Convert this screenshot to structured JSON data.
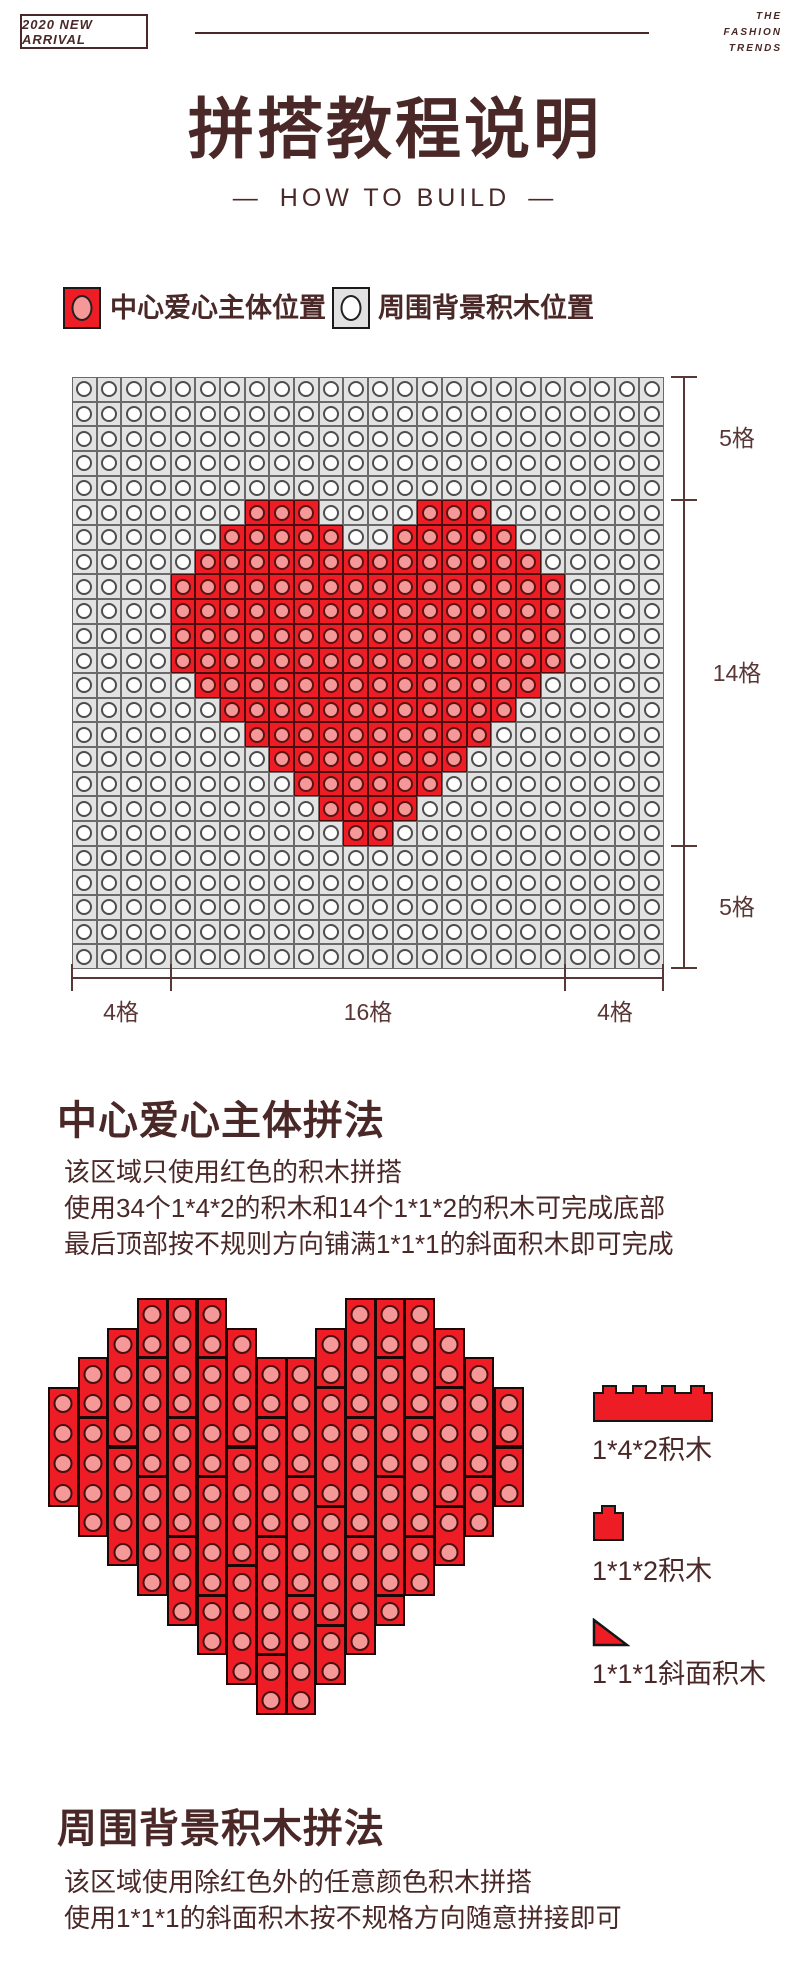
{
  "header": {
    "badge": "2020 NEW ARRIVAL",
    "brand": [
      "THE",
      "FASHION",
      "TRENDS"
    ],
    "title": "拼搭教程说明",
    "dash": "—",
    "subtitle": "HOW TO BUILD"
  },
  "legend": {
    "items": [
      {
        "label": "中心爱心主体位置",
        "swatch": "red"
      },
      {
        "label": "周围背景积木位置",
        "swatch": "gray"
      }
    ]
  },
  "colors": {
    "red": "#ee1c25",
    "pink": "#f49898",
    "gray_block": "#e2e2e2",
    "maroon_text": "#4a2828",
    "dimension_line": "#5a3737"
  },
  "grid": {
    "cols": 24,
    "rows": 24,
    "heart_rows": [
      [],
      [],
      [],
      [],
      [],
      [
        [
          8,
          10
        ],
        [
          15,
          17
        ]
      ],
      [
        [
          7,
          11
        ],
        [
          14,
          18
        ]
      ],
      [
        [
          6,
          19
        ]
      ],
      [
        [
          5,
          20
        ]
      ],
      [
        [
          5,
          20
        ]
      ],
      [
        [
          5,
          20
        ]
      ],
      [
        [
          5,
          20
        ]
      ],
      [
        [
          6,
          19
        ]
      ],
      [
        [
          7,
          18
        ]
      ],
      [
        [
          8,
          17
        ]
      ],
      [
        [
          9,
          16
        ]
      ],
      [
        [
          10,
          15
        ]
      ],
      [
        [
          11,
          14
        ]
      ],
      [
        [
          12,
          13
        ]
      ],
      [],
      [],
      [],
      [],
      []
    ]
  },
  "dimensions": {
    "right": [
      "5格",
      "14格",
      "5格"
    ],
    "bottom": [
      "4格",
      "16格",
      "4格"
    ]
  },
  "section1": {
    "heading": "中心爱心主体拼法",
    "lines": [
      "该区域只使用红色的积木拼搭",
      "使用34个1*4*2的积木和14个1*1*2的积木可完成底部",
      "最后顶部按不规则方向铺满1*1*1的斜面积木即可完成"
    ]
  },
  "bricks": [
    {
      "label": "1*4*2积木",
      "type": "brick-1x4x2"
    },
    {
      "label": "1*1*2积木",
      "type": "brick-1x1x2"
    },
    {
      "label": "1*1*1斜面积木",
      "type": "slope-1x1x1"
    }
  ],
  "section2": {
    "heading": "周围背景积木拼法",
    "lines": [
      "该区域使用除红色外的任意颜色积木拼搭",
      "使用1*1*1的斜面积木按不规格方向随意拼接即可"
    ]
  }
}
